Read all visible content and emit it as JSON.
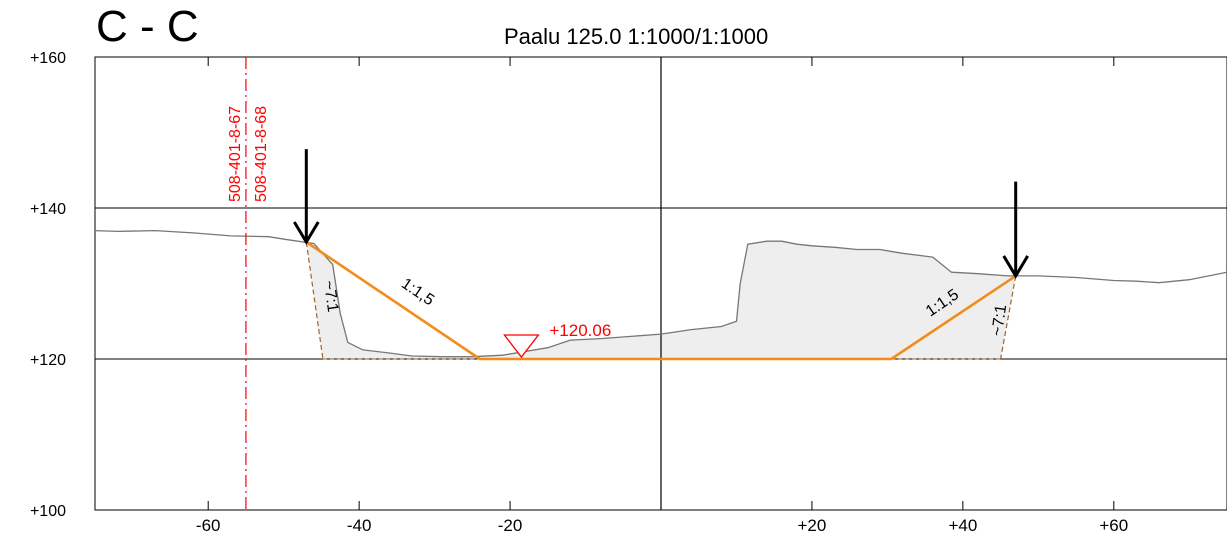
{
  "header": {
    "section_label": "C - C",
    "subtitle": "Paalu 125.0  1:1000/1:1000"
  },
  "axes": {
    "x_ticks": [
      {
        "value": -60,
        "label": "-60"
      },
      {
        "value": -40,
        "label": "-40"
      },
      {
        "value": -20,
        "label": "-20"
      },
      {
        "value": 20,
        "label": "+20"
      },
      {
        "value": 40,
        "label": "+40"
      },
      {
        "value": 60,
        "label": "+60"
      }
    ],
    "y_ticks": [
      {
        "value": 100,
        "label": "+100"
      },
      {
        "value": 120,
        "label": "+120"
      },
      {
        "value": 140,
        "label": "+140"
      },
      {
        "value": 160,
        "label": "+160"
      }
    ],
    "x_range": [
      -75,
      75
    ],
    "y_range": [
      100,
      160
    ]
  },
  "property_boundary": {
    "x": -55,
    "labels": [
      "508-401-8-67",
      "508-401-8-68"
    ],
    "color": "#ff0000"
  },
  "water_level": {
    "x": -18.5,
    "label": "+120.06",
    "color": "#ff0000"
  },
  "ground_profile": [
    [
      -75,
      137.0
    ],
    [
      -72,
      136.9
    ],
    [
      -67,
      137.0
    ],
    [
      -62,
      136.7
    ],
    [
      -57,
      136.3
    ],
    [
      -52,
      136.2
    ],
    [
      -49.5,
      135.8
    ],
    [
      -46,
      135.3
    ],
    [
      -43.5,
      132.5
    ],
    [
      -42.5,
      126.0
    ],
    [
      -41.5,
      122.2
    ],
    [
      -39.5,
      121.2
    ],
    [
      -36,
      120.8
    ],
    [
      -33,
      120.4
    ],
    [
      -29,
      120.3
    ],
    [
      -25,
      120.3
    ],
    [
      -21,
      120.5
    ],
    [
      -18,
      121.0
    ],
    [
      -15,
      121.5
    ],
    [
      -12,
      122.5
    ],
    [
      -8,
      122.7
    ],
    [
      -4,
      123.0
    ],
    [
      0,
      123.3
    ],
    [
      4,
      123.9
    ],
    [
      8,
      124.3
    ],
    [
      10,
      125.0
    ],
    [
      10.5,
      130.0
    ],
    [
      11.5,
      135.2
    ],
    [
      14,
      135.6
    ],
    [
      16,
      135.6
    ],
    [
      18,
      135.2
    ],
    [
      20,
      135.0
    ],
    [
      23,
      134.8
    ],
    [
      26,
      134.5
    ],
    [
      29,
      134.5
    ],
    [
      32,
      134.0
    ],
    [
      36,
      133.5
    ],
    [
      38.5,
      131.5
    ],
    [
      42,
      131.3
    ],
    [
      46,
      131.0
    ],
    [
      50,
      131.0
    ],
    [
      55,
      130.8
    ],
    [
      60,
      130.4
    ],
    [
      63,
      130.3
    ],
    [
      66,
      130.1
    ],
    [
      70,
      130.5
    ],
    [
      75,
      131.5
    ]
  ],
  "design_cut": {
    "polyline": [
      [
        -47,
        135.5
      ],
      [
        -24,
        120.0
      ],
      [
        30.5,
        120.0
      ],
      [
        47,
        131.0
      ]
    ],
    "color": "#f28c1a"
  },
  "left_slope_label": "1:1,5",
  "right_slope_label": "1:1,5",
  "left_steep_label": "~7:1",
  "right_steep_label": "~7:1",
  "steep_lines": [
    {
      "from": [
        -47,
        135.5
      ],
      "to": [
        -44.8,
        120.0
      ]
    },
    {
      "from": [
        47,
        131.0
      ],
      "to": [
        45.0,
        120.0
      ]
    }
  ],
  "arrows": [
    {
      "x": -47,
      "y_top": 147.8,
      "y_tip": 135.5
    },
    {
      "x": 47,
      "y_top": 143.5,
      "y_tip": 131.0
    }
  ],
  "colors": {
    "grid": "#000000",
    "ground": "#777777",
    "fill": "#eeeeee",
    "text": "#000000",
    "steep": "#a0622a"
  }
}
